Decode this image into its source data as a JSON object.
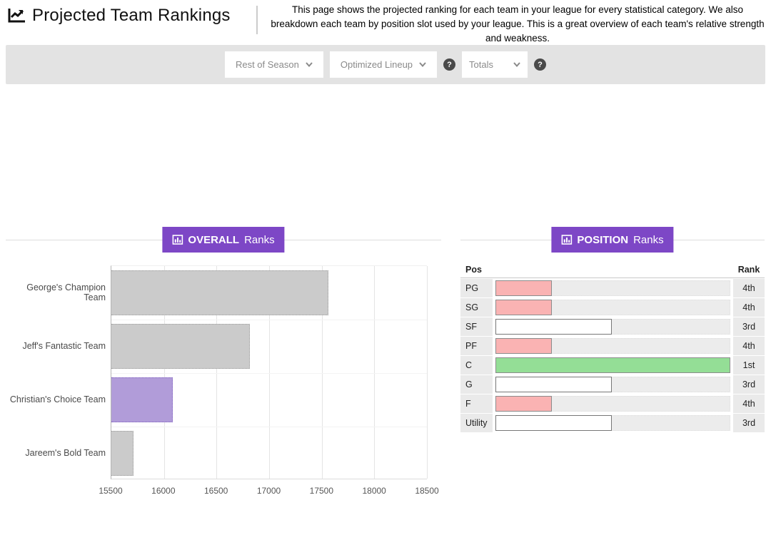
{
  "header": {
    "title": "Projected Team Rankings",
    "description": "This page shows the projected ranking for each team in your league for every statistical category. We also breakdown each team by position slot used by your league. This is a great overview of each team's relative strength and weakness."
  },
  "toolbar": {
    "timeframe_dropdown": "Rest of Season",
    "lineup_dropdown": "Optimized Lineup",
    "totals_dropdown": "Totals",
    "help_glyph": "?"
  },
  "sections": {
    "overall": {
      "title_strong": "OVERALL",
      "title_rest": "Ranks"
    },
    "position": {
      "title_strong": "POSITION",
      "title_rest": "Ranks"
    }
  },
  "colors": {
    "accent_purple": "#7d47c6",
    "bar_gray": "#cbcbcb",
    "bar_highlight_purple": "#b19cd9",
    "rank_pink": "#fab3b3",
    "rank_green": "#94de96",
    "rank_white": "#ffffff",
    "toolbar_bg": "#e3e3e3"
  },
  "chart_data": [
    {
      "type": "bar",
      "orientation": "horizontal",
      "title": "OVERALL Ranks",
      "categories": [
        "George's Champion Team",
        "Jeff's Fantastic Team",
        "Christian's Choice Team",
        "Jareem's Bold Team"
      ],
      "values": [
        17560,
        16815,
        16085,
        15710
      ],
      "xlim": [
        15500,
        18500
      ],
      "xticks": [
        15500,
        16000,
        16500,
        17000,
        17500,
        18000,
        18500
      ],
      "highlighted_category": "Christian's Choice Team",
      "grid": true,
      "legend": false
    },
    {
      "type": "table",
      "title": "POSITION Ranks",
      "columns": [
        "Pos",
        "",
        "Rank"
      ],
      "rows": [
        {
          "pos": "PG",
          "rank": "4th",
          "bar_pct": 25,
          "bar_color": "pink"
        },
        {
          "pos": "SG",
          "rank": "4th",
          "bar_pct": 25,
          "bar_color": "pink"
        },
        {
          "pos": "SF",
          "rank": "3rd",
          "bar_pct": 50,
          "bar_color": "white"
        },
        {
          "pos": "PF",
          "rank": "4th",
          "bar_pct": 25,
          "bar_color": "pink"
        },
        {
          "pos": "C",
          "rank": "1st",
          "bar_pct": 100,
          "bar_color": "green"
        },
        {
          "pos": "G",
          "rank": "3rd",
          "bar_pct": 50,
          "bar_color": "white"
        },
        {
          "pos": "F",
          "rank": "4th",
          "bar_pct": 25,
          "bar_color": "pink"
        },
        {
          "pos": "Utility",
          "rank": "3rd",
          "bar_pct": 50,
          "bar_color": "white"
        }
      ]
    }
  ]
}
